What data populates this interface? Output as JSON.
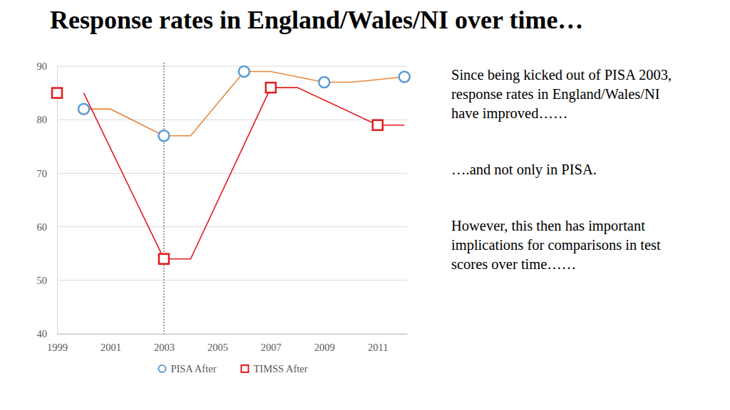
{
  "chart_data": {
    "type": "line",
    "title": "Response rates in England/Wales/NI over time…",
    "xlim": [
      1999,
      2012.1
    ],
    "xticks": [
      1999,
      2001,
      2003,
      2005,
      2007,
      2009,
      2011
    ],
    "ylim": [
      40,
      90
    ],
    "yticks": [
      40,
      50,
      60,
      70,
      80,
      90
    ],
    "grid": true,
    "legend": "bottom",
    "vline": 2003,
    "series": [
      {
        "name": "PISA After",
        "color": "#5b9bd5",
        "marker": "circle",
        "line_style": "none",
        "x": [
          2000,
          2003,
          2006,
          2009,
          2012
        ],
        "values": [
          82,
          77,
          89,
          87,
          88
        ]
      },
      {
        "name": "TIMSS After",
        "color": "#e31a1c",
        "marker": "square",
        "line_style": "none",
        "x": [
          1999,
          2003,
          2007,
          2011
        ],
        "values": [
          85,
          54,
          86,
          79
        ]
      },
      {
        "color": "#e8873a",
        "marker": "none",
        "line_style": "solid",
        "x": [
          2000,
          2001,
          2003,
          2004,
          2006,
          2007,
          2009,
          2010,
          2012
        ],
        "values": [
          82,
          82,
          77,
          77,
          89,
          89,
          87,
          87,
          88
        ]
      },
      {
        "color": "#e31a1c",
        "marker": "none",
        "line_style": "solid",
        "x": [
          2000,
          2003,
          2004,
          2007,
          2008,
          2011,
          2012
        ],
        "values": [
          85,
          54,
          54,
          86,
          86,
          79,
          79
        ]
      }
    ],
    "annotations": [
      [
        "Since being kicked out of PISA 2003,",
        "response rates in England/Wales/NI",
        "have improved……"
      ],
      [
        "….and not only in PISA."
      ],
      [
        "However, this then has important",
        "implications for comparisons in test",
        "scores over time……"
      ]
    ]
  }
}
